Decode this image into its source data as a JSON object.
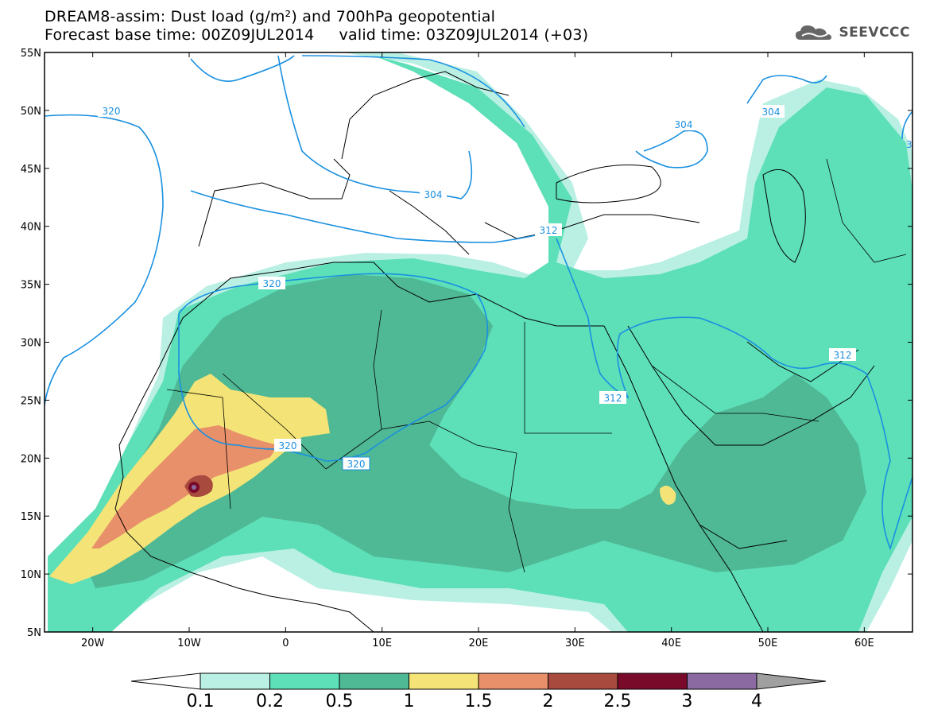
{
  "header": {
    "title_line1": "DREAM8-assim: Dust load (g/m²) and 700hPa geopotential",
    "title_line2": "Forecast base time: 00Z09JUL2014     valid time: 03Z09JUL2014 (+03)",
    "logo_text": "SEEVCCC",
    "logo_icon": "cloud-logo-icon"
  },
  "map": {
    "lat_labels": [
      "55N",
      "50N",
      "45N",
      "40N",
      "35N",
      "30N",
      "25N",
      "20N",
      "15N",
      "10N",
      "5N"
    ],
    "lon_labels": [
      "20W",
      "10W",
      "0",
      "10E",
      "20E",
      "30E",
      "40E",
      "50E",
      "60E"
    ],
    "contour_labels": [
      {
        "id": "c320a",
        "text": "320"
      },
      {
        "id": "c304a",
        "text": "304"
      },
      {
        "id": "c304b",
        "text": "304"
      },
      {
        "id": "c304c",
        "text": "304"
      },
      {
        "id": "c312a",
        "text": "312"
      },
      {
        "id": "c320b",
        "text": "320"
      },
      {
        "id": "c320c",
        "text": "320"
      },
      {
        "id": "c320d",
        "text": "320"
      },
      {
        "id": "c312b",
        "text": "312"
      },
      {
        "id": "c312c",
        "text": "312"
      },
      {
        "id": "c3",
        "text": "3"
      }
    ],
    "colors": {
      "c01": "#b9f0e3",
      "c02": "#5ddfb8",
      "c05": "#4fb894",
      "c1": "#f4e477",
      "c15": "#e8906a",
      "c2": "#a84a3e",
      "c25": "#7a0a2a",
      "c3": "#8a6aa0",
      "c4": "#a0a0a0",
      "contour": "#1a90e0"
    }
  },
  "colorbar": {
    "labels": [
      "0.1",
      "0.2",
      "0.5",
      "1",
      "1.5",
      "2",
      "2.5",
      "3",
      "4"
    ]
  }
}
